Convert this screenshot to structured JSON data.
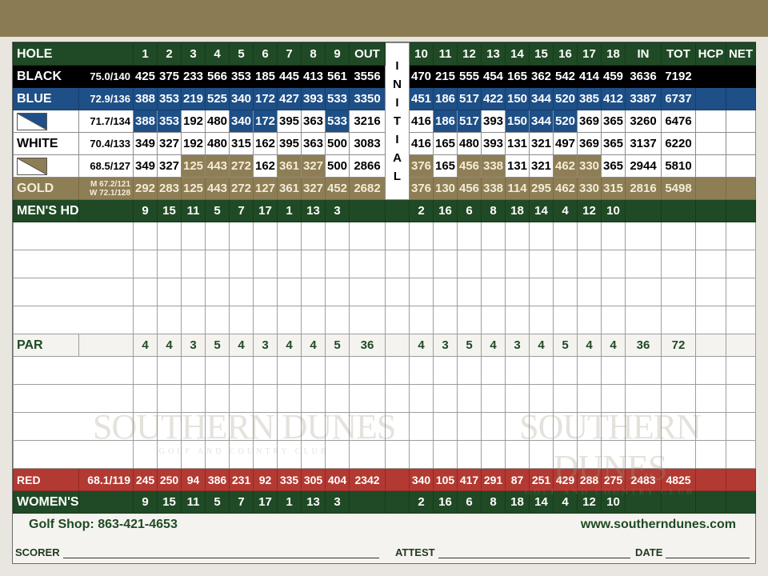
{
  "colors": {
    "green": "#1f4a25",
    "black": "#000000",
    "blue": "#1e4f86",
    "gold": "#8e7e55",
    "red": "#b23a32"
  },
  "header": {
    "label": "HOLE",
    "front": [
      "1",
      "2",
      "3",
      "4",
      "5",
      "6",
      "7",
      "8",
      "9"
    ],
    "out": "OUT",
    "initial": "INITIAL",
    "back": [
      "10",
      "11",
      "12",
      "13",
      "14",
      "15",
      "16",
      "17",
      "18"
    ],
    "in": "IN",
    "tot": "TOT",
    "hcp": "HCP",
    "net": "NET"
  },
  "rows": [
    {
      "cls": "black",
      "label": "BLACK",
      "rating": "75.0/140",
      "front": [
        "425",
        "375",
        "233",
        "566",
        "353",
        "185",
        "445",
        "413",
        "561"
      ],
      "out": "3556",
      "back": [
        "470",
        "215",
        "555",
        "454",
        "165",
        "362",
        "542",
        "414",
        "459"
      ],
      "in": "3636",
      "tot": "7192"
    },
    {
      "cls": "blue",
      "label": "BLUE",
      "rating": "72.9/136",
      "front": [
        "388",
        "353",
        "219",
        "525",
        "340",
        "172",
        "427",
        "393",
        "533"
      ],
      "out": "3350",
      "back": [
        "451",
        "186",
        "517",
        "422",
        "150",
        "344",
        "520",
        "385",
        "412"
      ],
      "in": "3387",
      "tot": "6737"
    },
    {
      "cls": "white",
      "label": "",
      "swatch": "blue",
      "rating": "71.7/134",
      "front": [
        "388",
        "353",
        "192",
        "480",
        "340",
        "172",
        "395",
        "363",
        "533"
      ],
      "out": "3216",
      "back": [
        "416",
        "186",
        "517",
        "393",
        "150",
        "344",
        "520",
        "369",
        "365"
      ],
      "in": "3260",
      "tot": "6476",
      "front_fill": "bbwwbbwwb",
      "back_fill": "wbbwbbbww"
    },
    {
      "cls": "white",
      "label": "WHITE",
      "rating": "70.4/133",
      "front": [
        "349",
        "327",
        "192",
        "480",
        "315",
        "162",
        "395",
        "363",
        "500"
      ],
      "out": "3083",
      "back": [
        "416",
        "165",
        "480",
        "393",
        "131",
        "321",
        "497",
        "369",
        "365"
      ],
      "in": "3137",
      "tot": "6220"
    },
    {
      "cls": "white",
      "label": "",
      "swatch": "gold",
      "rating": "68.5/127",
      "front": [
        "349",
        "327",
        "125",
        "443",
        "272",
        "162",
        "361",
        "327",
        "500"
      ],
      "out": "2866",
      "back": [
        "376",
        "165",
        "456",
        "338",
        "131",
        "321",
        "462",
        "330",
        "365"
      ],
      "in": "2944",
      "tot": "5810",
      "front_fill": "wwgggwggw",
      "back_fill": "gwggwwggw"
    },
    {
      "cls": "gold",
      "label": "GOLD",
      "rating": [
        "M 67.2/121",
        "W 72.1/128"
      ],
      "front": [
        "292",
        "283",
        "125",
        "443",
        "272",
        "127",
        "361",
        "327",
        "452"
      ],
      "out": "2682",
      "back": [
        "376",
        "130",
        "456",
        "338",
        "114",
        "295",
        "462",
        "330",
        "315"
      ],
      "in": "2816",
      "tot": "5498"
    },
    {
      "cls": "hdcp",
      "label": "MEN'S HDCP",
      "rating": "",
      "front": [
        "9",
        "15",
        "11",
        "5",
        "7",
        "17",
        "1",
        "13",
        "3"
      ],
      "out": "",
      "back": [
        "2",
        "16",
        "6",
        "8",
        "18",
        "14",
        "4",
        "12",
        "10"
      ],
      "in": "",
      "tot": ""
    },
    {
      "cls": "blank"
    },
    {
      "cls": "blank"
    },
    {
      "cls": "blank"
    },
    {
      "cls": "blank"
    },
    {
      "cls": "par",
      "label": "PAR",
      "rating": "",
      "front": [
        "4",
        "4",
        "3",
        "5",
        "4",
        "3",
        "4",
        "4",
        "5"
      ],
      "out": "36",
      "back": [
        "4",
        "3",
        "5",
        "4",
        "3",
        "4",
        "5",
        "4",
        "4"
      ],
      "in": "36",
      "tot": "72"
    },
    {
      "cls": "blank"
    },
    {
      "cls": "blank"
    },
    {
      "cls": "blank"
    },
    {
      "cls": "blank"
    },
    {
      "cls": "red",
      "label": "RED",
      "rating": "68.1/119",
      "front": [
        "245",
        "250",
        "94",
        "386",
        "231",
        "92",
        "335",
        "305",
        "404"
      ],
      "out": "2342",
      "back": [
        "340",
        "105",
        "417",
        "291",
        "87",
        "251",
        "429",
        "288",
        "275"
      ],
      "in": "2483",
      "tot": "4825"
    },
    {
      "cls": "hdcp",
      "label": "WOMEN'S HDCP",
      "rating": "",
      "front": [
        "9",
        "15",
        "11",
        "5",
        "7",
        "17",
        "1",
        "13",
        "3"
      ],
      "out": "",
      "back": [
        "2",
        "16",
        "6",
        "8",
        "18",
        "14",
        "4",
        "12",
        "10"
      ],
      "in": "",
      "tot": ""
    }
  ],
  "watermark": {
    "title": "SOUTHERN DUNES",
    "subtitle": "GOLF AND COUNTRY CLUB"
  },
  "footer": {
    "golf_shop": "Golf Shop: 863-421-4653",
    "website": "www.southerndunes.com",
    "scorer": "SCORER",
    "attest": "ATTEST",
    "date": "DATE"
  }
}
